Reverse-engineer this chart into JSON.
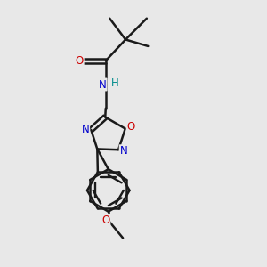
{
  "bg_color": "#e8e8e8",
  "bond_color": "#1a1a1a",
  "bond_width": 1.8,
  "atom_colors": {
    "O": "#cc0000",
    "N": "#0000cc",
    "H": "#008b8b",
    "C": "#1a1a1a"
  },
  "font_size": 8.5,
  "fig_width": 3.0,
  "fig_height": 3.0,
  "dpi": 100,
  "xlim": [
    0,
    10
  ],
  "ylim": [
    0,
    10
  ]
}
